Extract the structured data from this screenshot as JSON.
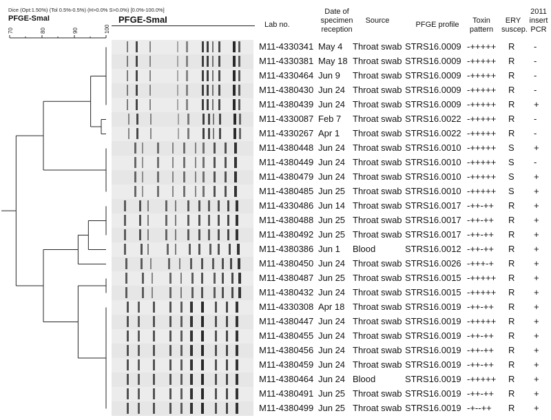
{
  "header": {
    "params": "Dice (Opt:1.50%) (Tol 0.5%-0.5%) (H>0.0% S>0.0%) [0.0%-100.0%]",
    "dendro_title": "PFGE-SmaI",
    "gel_title": "PFGE-SmaI",
    "scale_ticks": [
      "70",
      "80",
      "90",
      "100"
    ]
  },
  "columns": {
    "lab_no": "Lab no.",
    "date_1": "Date of",
    "date_2": "specimen",
    "date_3": "reception",
    "source": "Source",
    "pfge": "PFGE profile",
    "toxin_1": "Toxin",
    "toxin_2": "pattern",
    "ery_1": "ERY",
    "ery_2": "suscep.",
    "pcr_1": "2011",
    "pcr_2": "insert",
    "pcr_3": "PCR"
  },
  "rows": [
    {
      "lab": "M11-4330341",
      "date": "May 4",
      "source": "Throat swab",
      "pfge": "STRS16.0009",
      "toxin": "-+++++",
      "ery": "R",
      "pcr": "-"
    },
    {
      "lab": "M11-4330381",
      "date": "May 18",
      "source": "Throat swab",
      "pfge": "STRS16.0009",
      "toxin": "-+++++",
      "ery": "R",
      "pcr": "-"
    },
    {
      "lab": "M11-4330464",
      "date": "Jun 9",
      "source": "Throat swab",
      "pfge": "STRS16.0009",
      "toxin": "-+++++",
      "ery": "R",
      "pcr": "-"
    },
    {
      "lab": "M11-4380430",
      "date": "Jun 24",
      "source": "Throat swab",
      "pfge": "STRS16.0009",
      "toxin": "-+++++",
      "ery": "R",
      "pcr": "-"
    },
    {
      "lab": "M11-4380439",
      "date": "Jun 24",
      "source": "Throat swab",
      "pfge": "STRS16.0009",
      "toxin": "-+++++",
      "ery": "R",
      "pcr": "+"
    },
    {
      "lab": "M11-4330087",
      "date": "Feb 7",
      "source": "Throat swab",
      "pfge": "STRS16.0022",
      "toxin": "-+++++",
      "ery": "R",
      "pcr": "-"
    },
    {
      "lab": "M11-4330267",
      "date": "Apr 1",
      "source": "Throat swab",
      "pfge": "STRS16.0022",
      "toxin": "-+++++",
      "ery": "R",
      "pcr": "-"
    },
    {
      "lab": "M11-4380448",
      "date": "Jun 24",
      "source": "Throat swab",
      "pfge": "STRS16.0010",
      "toxin": "-+++++",
      "ery": "S",
      "pcr": "+"
    },
    {
      "lab": "M11-4380449",
      "date": "Jun 24",
      "source": "Throat swab",
      "pfge": "STRS16.0010",
      "toxin": "-+++++",
      "ery": "S",
      "pcr": "-"
    },
    {
      "lab": "M11-4380479",
      "date": "Jun 24",
      "source": "Throat swab",
      "pfge": "STRS16.0010",
      "toxin": "-+++++",
      "ery": "S",
      "pcr": "+"
    },
    {
      "lab": "M11-4380485",
      "date": "Jun 25",
      "source": "Throat swab",
      "pfge": "STRS16.0010",
      "toxin": "-+++++",
      "ery": "S",
      "pcr": "+"
    },
    {
      "lab": "M11-4330486",
      "date": "Jun 14",
      "source": "Throat swab",
      "pfge": "STRS16.0017",
      "toxin": "-++-++",
      "ery": "R",
      "pcr": "+"
    },
    {
      "lab": "M11-4380488",
      "date": "Jun 25",
      "source": "Throat swab",
      "pfge": "STRS16.0017",
      "toxin": "-++-++",
      "ery": "R",
      "pcr": "+"
    },
    {
      "lab": "M11-4380492",
      "date": "Jun 25",
      "source": "Throat swab",
      "pfge": "STRS16.0017",
      "toxin": "-++-++",
      "ery": "R",
      "pcr": "+"
    },
    {
      "lab": "M11-4380386",
      "date": "Jun 1",
      "source": "Blood",
      "pfge": "STRS16.0012",
      "toxin": "-++-++",
      "ery": "R",
      "pcr": "+"
    },
    {
      "lab": "M11-4380450",
      "date": "Jun 24",
      "source": "Throat swab",
      "pfge": "STRS16.0026",
      "toxin": "-+++-+",
      "ery": "R",
      "pcr": "+"
    },
    {
      "lab": "M11-4380487",
      "date": "Jun 25",
      "source": "Throat swab",
      "pfge": "STRS16.0015",
      "toxin": "-+++++",
      "ery": "R",
      "pcr": "+"
    },
    {
      "lab": "M11-4380432",
      "date": "Jun 24",
      "source": "Throat swab",
      "pfge": "STRS16.0015",
      "toxin": "-+++++",
      "ery": "R",
      "pcr": "+"
    },
    {
      "lab": "M11-4330308",
      "date": "Apr 18",
      "source": "Throat swab",
      "pfge": "STRS16.0019",
      "toxin": "-++-++",
      "ery": "R",
      "pcr": "+"
    },
    {
      "lab": "M11-4380447",
      "date": "Jun 24",
      "source": "Throat swab",
      "pfge": "STRS16.0019",
      "toxin": "-+++++",
      "ery": "R",
      "pcr": "+"
    },
    {
      "lab": "M11-4380455",
      "date": "Jun 24",
      "source": "Throat swab",
      "pfge": "STRS16.0019",
      "toxin": "-++-++",
      "ery": "R",
      "pcr": "+"
    },
    {
      "lab": "M11-4380456",
      "date": "Jun 24",
      "source": "Throat swab",
      "pfge": "STRS16.0019",
      "toxin": "-++-++",
      "ery": "R",
      "pcr": "+"
    },
    {
      "lab": "M11-4380459",
      "date": "Jun 24",
      "source": "Throat swab",
      "pfge": "STRS16.0019",
      "toxin": "-++-++",
      "ery": "R",
      "pcr": "+"
    },
    {
      "lab": "M11-4380464",
      "date": "Jun 24",
      "source": "Blood",
      "pfge": "STRS16.0019",
      "toxin": "-+++++",
      "ery": "R",
      "pcr": "+"
    },
    {
      "lab": "M11-4380491",
      "date": "Jun 25",
      "source": "Throat swab",
      "pfge": "STRS16.0019",
      "toxin": "-++-++",
      "ery": "R",
      "pcr": "+"
    },
    {
      "lab": "M11-4380499",
      "date": "Jun 25",
      "source": "Throat swab",
      "pfge": "STRS16.0019",
      "toxin": "-+--++",
      "ery": "R",
      "pcr": "+"
    }
  ],
  "colors": {
    "line": "#222222",
    "gel_bg": "#eeeeee",
    "band": "#2a2a2a"
  }
}
